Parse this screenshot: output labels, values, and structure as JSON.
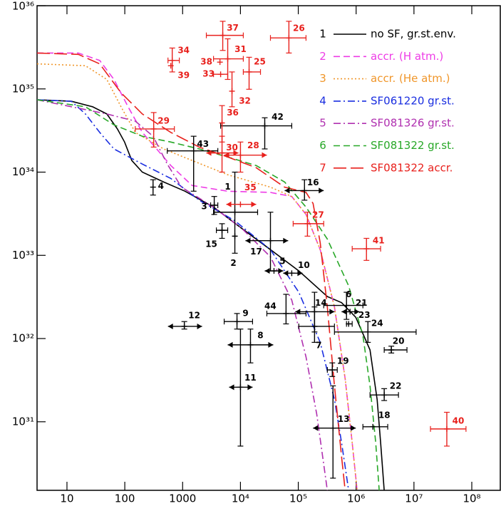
{
  "chart_data": {
    "type": "line",
    "xscale": "log",
    "yscale": "log",
    "xlim": [
      3.04,
      320000000.0
    ],
    "ylim": [
      1.5e+30,
      1e+36
    ],
    "xticks": [
      10,
      100,
      1000,
      {
        "value": 10000.0,
        "label": "10⁴"
      },
      {
        "value": 100000.0,
        "label": "10⁵"
      },
      {
        "value": 1000000.0,
        "label": "10⁶"
      },
      {
        "value": 10000000.0,
        "label": "10⁷"
      },
      {
        "value": 100000000.0,
        "label": "10⁸"
      }
    ],
    "yticks": [
      {
        "value": 1e+31,
        "label": "10³¹"
      },
      {
        "value": 1e+32,
        "label": "10³²"
      },
      {
        "value": 1e+33,
        "label": "10³³"
      },
      {
        "value": 1e+34,
        "label": "10³⁴"
      },
      {
        "value": 1e+35,
        "label": "10³⁵"
      },
      {
        "value": 1e+36,
        "label": "10³⁶"
      }
    ],
    "legend": "upper right",
    "series": [
      {
        "id": "1",
        "name": "no SF, gr.st.env.",
        "color": "#000000",
        "linestyle": "solid",
        "x": [
          3.04,
          11.9,
          27.7,
          48.9,
          74.7,
          99,
          132,
          201,
          471,
          1100,
          3420,
          10600.0,
          33000.0,
          102000.0,
          318000.0,
          560000.0,
          986000.0,
          1740000.0,
          2310000.0,
          2650000.0,
          3060000.0
        ],
        "values": [
          7.4e+34,
          7.1e+34,
          6.1e+34,
          5e+34,
          3.3e+34,
          2.3e+34,
          1.38e+34,
          1e+34,
          7.6e+33,
          5.9e+33,
          3.8e+33,
          2.1e+33,
          1.17e+33,
          6.5e+32,
          3.2e+32,
          2.7e+32,
          1.8e+32,
          7.3e+31,
          1.85e+31,
          5.6e+30,
          1.5e+30
        ]
      },
      {
        "id": "2",
        "name": "accr. (H atm.)",
        "color": "#ee3ce6",
        "linestyle": "dashed",
        "x": [
          3.04,
          15.7,
          36.8,
          64.9,
          114,
          201,
          355,
          625,
          1460,
          6020,
          33000.0,
          77100.0,
          136000.0,
          239000.0,
          422000.0,
          645000.0,
          855000.0,
          1040000.0
        ],
        "values": [
          2.7e+35,
          2.7e+35,
          2.2e+35,
          1.3e+35,
          6.1e+34,
          3e+34,
          1.9e+34,
          1.2e+34,
          6.9e+33,
          5.9e+33,
          5.7e+33,
          5.1e+33,
          3.1e+33,
          1.17e+33,
          2.4e+32,
          3.3e+31,
          5.6e+30,
          1.5e+30
        ]
      },
      {
        "id": "3",
        "name": "accr. (He atm.)",
        "color": "#f0962a",
        "linestyle": "dotted",
        "x": [
          3.04,
          20.9,
          48.9,
          86.1,
          152,
          471,
          1460,
          6020,
          33000.0,
          77100.0,
          136000.0,
          239000.0,
          422000.0,
          645000.0,
          855000.0,
          1040000.0
        ],
        "values": [
          2e+35,
          1.9e+35,
          1.3e+35,
          6.1e+34,
          3e+34,
          1.9e+34,
          1.38e+34,
          9.3e+33,
          6.6e+33,
          5.1e+33,
          3.1e+33,
          1.17e+33,
          2.4e+32,
          3.3e+31,
          5.6e+30,
          1.5e+30
        ]
      },
      {
        "id": "4",
        "name": "SF061220 gr.st.",
        "color": "#1a2ee0",
        "linestyle": "dashdot",
        "x": [
          3.04,
          11.9,
          20.9,
          36.8,
          64.9,
          201,
          625,
          1940,
          8000,
          33000.0,
          102000.0,
          239000.0,
          422000.0,
          560000.0,
          743000.0
        ],
        "values": [
          7.4e+34,
          7.1e+34,
          5e+34,
          3e+34,
          1.9e+34,
          1.25e+34,
          8.4e+33,
          4.6e+33,
          2.6e+33,
          1.17e+33,
          3.6e+32,
          9e+31,
          1.85e+31,
          5.6e+30,
          1.5e+30
        ]
      },
      {
        "id": "5",
        "name": "SF081326 gr.st.",
        "color": "#b030b0",
        "linestyle": "dashdot",
        "x": [
          3.04,
          48.9,
          152,
          308,
          542,
          955,
          3420,
          10600.0,
          33000.0,
          77100.0,
          136000.0,
          208000.0,
          275000.0,
          318000.0
        ],
        "values": [
          7.4e+34,
          5e+34,
          4.1e+34,
          2.7e+34,
          1.25e+34,
          6.6e+33,
          3.8e+33,
          2.1e+33,
          9.6e+32,
          2.9e+32,
          6e+31,
          1.24e+31,
          3.1e+30,
          1.5e+30
        ]
      },
      {
        "id": "6",
        "name": "SF081322 gr.st.",
        "color": "#28a828",
        "linestyle": "dashed",
        "x": [
          3.04,
          20.9,
          64.9,
          201,
          625,
          1940,
          6020,
          18700.0,
          58100.0,
          136000.0,
          318000.0,
          743000.0,
          1310000.0,
          1740000.0,
          2180000.0,
          2510000.0
        ],
        "values": [
          7.4e+34,
          6.1e+34,
          3.7e+34,
          2.7e+34,
          2.3e+34,
          1.9e+34,
          1.52e+34,
          1.2e+34,
          7.6e+33,
          3.8e+33,
          1.57e+33,
          4.3e+32,
          1.09e+32,
          2.7e+31,
          5.6e+30,
          1.5e+30
        ]
      },
      {
        "id": "7",
        "name": "SF081322 accr.",
        "color": "#e8201c",
        "linestyle": "longdash",
        "x": [
          3.04,
          15.7,
          36.8,
          86.1,
          201,
          625,
          1940,
          6020,
          18700.0,
          58100.0,
          136000.0,
          180000.0,
          239000.0,
          318000.0,
          422000.0,
          560000.0,
          645000.0
        ],
        "values": [
          2.7e+35,
          2.6e+35,
          2e+35,
          9e+34,
          5e+34,
          3e+34,
          2e+34,
          1.52e+34,
          1.13e+34,
          6.6e+33,
          5.7e+33,
          4.2e+33,
          1.42e+33,
          2.4e+32,
          2.7e+31,
          3.8e+30,
          1.5e+30
        ]
      }
    ],
    "point_groups": [
      {
        "color": "#000000",
        "points": [
          {
            "label": "1",
            "x": 8000,
            "y": 3.3e+33,
            "x_range": [
              3420,
              19800.0
            ]
          },
          {
            "label": "2",
            "x": 8000,
            "y": 1.7e+33,
            "y_range": [
              1e+34,
              1.06e+33
            ]
          },
          {
            "label": "3",
            "x": 3520,
            "y": 4e+33,
            "x_range": [
              3050,
              4060
            ],
            "y_range": [
              5.1e+33,
              3.1e+33
            ]
          },
          {
            "label": "4",
            "x": 308,
            "y": 6.6e+33,
            "y_range": [
              8.1e+33,
              5.3e+33
            ]
          },
          {
            "label": "5",
            "x": 38000.0,
            "y": 6.5e+32,
            "x_range": [
              26300.0,
              54800.0
            ],
            "x_arrows": true
          },
          {
            "label": "6",
            "x": 682000.0,
            "y": 2.5e+32,
            "x_range": [
              275000.0,
              1310000.0
            ],
            "y_range": [
              3.6e+32,
              1.7e+32
            ]
          },
          {
            "label": "7",
            "x": 191000.0,
            "y": 1.4e+32,
            "x_range": [
              102000.0,
              422000.0
            ],
            "y_range": [
              2.4e+32,
              9e+31
            ]
          },
          {
            "label": "8",
            "x": 14900.0,
            "y": 8.4e+31,
            "x_range": [
              6020,
              36900.0
            ],
            "y_range": [
              1.3e+32,
              5.1e+31
            ],
            "x_arrows": true
          },
          {
            "label": "9",
            "x": 8710,
            "y": 1.6e+32,
            "x_range": [
              5230,
              16200.0
            ],
            "y_range": [
              2e+32,
              1.3e+32
            ]
          },
          {
            "label": "10",
            "x": 77100.0,
            "y": 6.1e+32,
            "x_range": [
              54800.0,
              118000.0
            ],
            "x_arrows": true
          },
          {
            "label": "11",
            "x": 10000.0,
            "y": 2.6e+31,
            "x_range": [
              6370,
              16200.0
            ],
            "y_range": [
              1.3e+32,
              5.1e+30
            ],
            "x_arrows": true
          },
          {
            "label": "12",
            "x": 1070,
            "y": 1.4e+32,
            "x_range": [
              558,
              2170
            ],
            "y_range": [
              1.6e+32,
              1.3e+32
            ],
            "x_arrows": true
          },
          {
            "label": "13",
            "x": 398000.0,
            "y": 8.4e+30,
            "x_range": [
              180000.0,
              986000.0
            ],
            "y_range": [
              2.7e+31,
              2.1e+30
            ],
            "x_arrows": true
          },
          {
            "label": "14",
            "x": 191000.0,
            "y": 2.1e+32,
            "x_range": [
              88700.0,
              422000.0
            ],
            "y_range": [
              3.6e+32,
              1.2e+32
            ],
            "x_arrows": true
          },
          {
            "label": "15",
            "x": 4800,
            "y": 2e+33,
            "x_range": [
              3830,
              6020
            ],
            "y_range": [
              2.4e+33,
              1.6e+33
            ]
          },
          {
            "label": "16",
            "x": 128000.0,
            "y": 6e+33,
            "x_range": [
              58100.0,
              275000.0
            ],
            "y_range": [
              8.1e+33,
              4.6e+33
            ],
            "x_arrows": true
          },
          {
            "label": "17",
            "x": 33000.0,
            "y": 1.5e+33,
            "x_range": [
              12200.0,
              66800.0
            ],
            "y_range": [
              3.3e+33,
              6.5e+32
            ],
            "x_arrows": true
          },
          {
            "label": "18",
            "x": 1950000.0,
            "y": 8.7e+30,
            "x_range": [
              1310000.0,
              3520000.0
            ]
          },
          {
            "label": "19",
            "x": 387000.0,
            "y": 4.2e+31,
            "x_range": [
              318000.0,
              472000.0
            ],
            "y_range": [
              5.1e+31,
              3.5e+31
            ]
          },
          {
            "label": "20",
            "x": 4060000.0,
            "y": 7.3e+31,
            "x_range": [
              3060000.0,
              7570000.0
            ],
            "y_range": [
              8.1e+31,
              6.7e+31
            ]
          },
          {
            "label": "21",
            "x": 785000.0,
            "y": 2.1e+32,
            "x_range": [
              560000.0,
              1140000.0
            ],
            "x_arrows": true
          },
          {
            "label": "22",
            "x": 3060000.0,
            "y": 2.1e+31,
            "x_range": [
              1740000.0,
              5400000.0
            ],
            "y_range": [
              2.5e+31,
              1.8e+31
            ]
          },
          {
            "label": "23",
            "x": 743000.0,
            "y": 1.5e+32,
            "x_range": [
              682000.0,
              855000.0
            ]
          },
          {
            "label": "24",
            "x": 1600000.0,
            "y": 1.2e+32,
            "x_range": [
              422000.0,
              10900000.0
            ],
            "y_range": [
              1.6e+32,
              9e+31
            ]
          },
          {
            "label": "42",
            "x": 26300.0,
            "y": 3.6e+34,
            "x_range": [
              4540,
              77100.0
            ],
            "y_range": [
              4.5e+34,
              1.9e+34
            ]
          },
          {
            "label": "43",
            "x": 1550,
            "y": 1.8e+34,
            "x_range": [
              542,
              4060
            ],
            "y_range": [
              2.7e+34,
              5.9e+33
            ]
          },
          {
            "label": "44",
            "x": 61400.0,
            "y": 2e+32,
            "x_range": [
              28600.0,
              136000.0
            ],
            "y_range": [
              3.4e+32,
              1.5e+32
            ]
          }
        ]
      },
      {
        "color": "#e8201c",
        "points": [
          {
            "label": "25",
            "x": 14100.0,
            "y": 1.6e+35,
            "x_range": [
              11200.0,
              22200.0
            ],
            "y_range": [
              2.4e+35,
              9.9e+34
            ]
          },
          {
            "label": "26",
            "x": 68800.0,
            "y": 4.1e+35,
            "x_range": [
              33000.0,
              136000.0
            ],
            "y_range": [
              6.5e+35,
              2.7e+35
            ]
          },
          {
            "label": "27",
            "x": 144000.0,
            "y": 2.4e+33,
            "x_range": [
              81500.0,
              275000.0
            ],
            "y_range": [
              3.3e+33,
              1.7e+33
            ]
          },
          {
            "label": "28",
            "x": 10000.0,
            "y": 1.6e+34,
            "x_range": [
              5230,
              28600.0
            ],
            "y_range": [
              2.3e+34,
              1e+34
            ],
            "x_arrows": true
          },
          {
            "label": "29",
            "x": 316,
            "y": 3.3e+34,
            "x_range": [
              152,
              720
            ],
            "y_range": [
              5.2e+34,
              2e+34
            ]
          },
          {
            "label": "30",
            "x": 4800,
            "y": 1.7e+34,
            "x_range": [
              2570,
              9210
            ],
            "y_range": [
              2.7e+34,
              1e+34
            ],
            "x_arrows": true
          },
          {
            "label": "31",
            "x": 6020,
            "y": 2.3e+35,
            "x_range": [
              3420,
              11200.0
            ],
            "y_range": [
              4e+35,
              1.3e+35
            ]
          },
          {
            "label": "32",
            "x": 7140,
            "y": 9.4e+34,
            "y_range": [
              1.6e+35,
              6.1e+34
            ]
          },
          {
            "label": "33",
            "x": 4540,
            "y": 1.5e+35,
            "x_range": [
              3420,
              6020
            ]
          },
          {
            "label": "34",
            "x": 661,
            "y": 2.2e+35,
            "x_range": [
              558,
              877
            ],
            "y_range": [
              3.1e+35,
              1.6e+35
            ]
          },
          {
            "label": "35",
            "x": 10000.0,
            "y": 4.1e+33,
            "x_range": [
              5690,
              18700.0
            ],
            "x_arrows": true
          },
          {
            "label": "36",
            "x": 4800,
            "y": 3.9e+34,
            "y_range": [
              6.3e+34,
              2.3e+34
            ]
          },
          {
            "label": "37",
            "x": 4940,
            "y": 4.4e+35,
            "x_range": [
              2570,
              11200.0
            ],
            "y_range": [
              6.5e+35,
              2.9e+35
            ]
          },
          {
            "label": "38",
            "x": 4420,
            "y": 2.1e+35
          },
          {
            "label": "39",
            "x": 625,
            "y": 1.9e+35
          },
          {
            "label": "40",
            "x": 37000000.0,
            "y": 8.2e+30,
            "x_range": [
              19300000.0,
              79400000.0
            ],
            "y_range": [
              1.3e+31,
              5.1e+30
            ]
          },
          {
            "label": "41",
            "x": 1510000.0,
            "y": 1.2e+33,
            "x_range": [
              855000.0,
              2650000.0
            ],
            "y_range": [
              1.6e+33,
              8.7e+32
            ]
          }
        ]
      }
    ]
  }
}
